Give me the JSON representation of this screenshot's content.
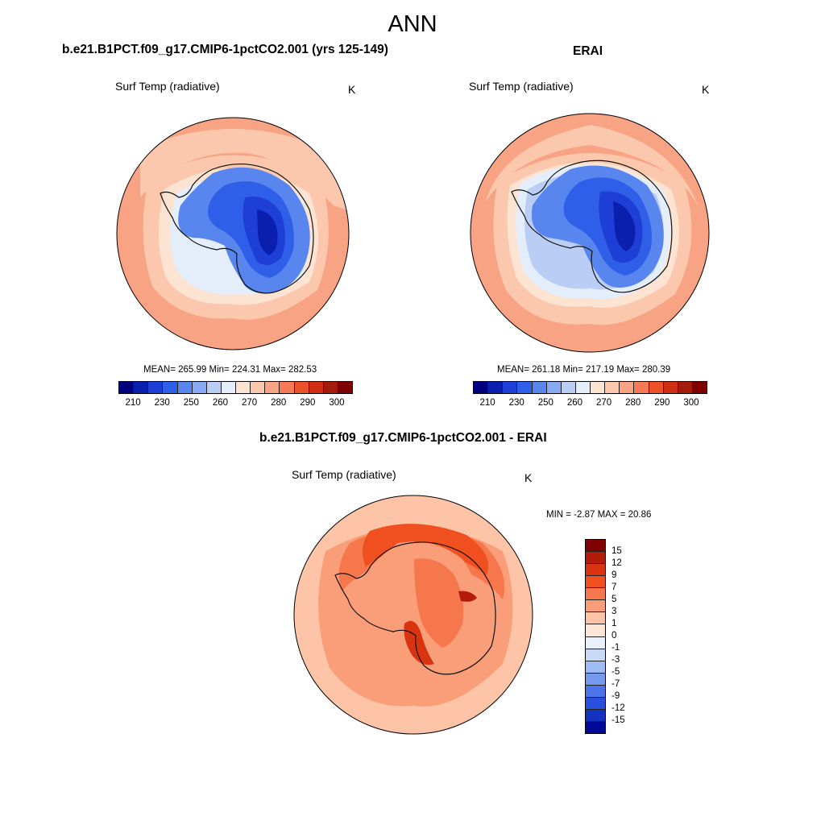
{
  "title": "ANN",
  "left_panel": {
    "title": "b.e21.B1PCT.f09_g17.CMIP6-1pctCO2.001 (yrs 125-149)",
    "variable": "Surf Temp (radiative)",
    "units": "K",
    "stats": "MEAN= 265.99  Min= 224.31  Max= 282.53"
  },
  "right_panel": {
    "title": "ERAI",
    "variable": "Surf Temp (radiative)",
    "units": "K",
    "stats": "MEAN= 261.18  Min= 217.19  Max= 280.39"
  },
  "diff_panel": {
    "title": "b.e21.B1PCT.f09_g17.CMIP6-1pctCO2.001 - ERAI",
    "variable": "Surf Temp (radiative)",
    "units": "K",
    "stats": "MIN =  -2.87 MAX =  20.86"
  },
  "colors": {
    "abs_scale": [
      "#00007f",
      "#0a1fae",
      "#1e3fd6",
      "#2f5fe8",
      "#5886ee",
      "#89aaf2",
      "#b9cdf5",
      "#e4eefa",
      "#fde3d1",
      "#fbc8ae",
      "#f8a383",
      "#f57a55",
      "#ed5127",
      "#cf2e12",
      "#a41a0b",
      "#7f0000"
    ],
    "diff_scale": [
      "#7f0000",
      "#b31c0a",
      "#d93410",
      "#f0501f",
      "#f7774d",
      "#fa9e7a",
      "#fdc4a8",
      "#fee5d6",
      "#e7f0fb",
      "#c8dbf6",
      "#9fbdf2",
      "#7499ed",
      "#4a74e8",
      "#2850dc",
      "#1232bf",
      "#000a96"
    ],
    "land_line": "#111111"
  },
  "chart_data": [
    {
      "type": "heatmap",
      "name": "model-surf-temp",
      "colorbar_labels": [
        "210",
        "230",
        "250",
        "260",
        "270",
        "280",
        "290",
        "300"
      ],
      "colorbar_levels": [
        210,
        220,
        230,
        240,
        250,
        255,
        260,
        265,
        270,
        275,
        280,
        285,
        290,
        295,
        300
      ],
      "stats": {
        "mean": 265.99,
        "min": 224.31,
        "max": 282.53
      }
    },
    {
      "type": "heatmap",
      "name": "erai-surf-temp",
      "colorbar_labels": [
        "210",
        "230",
        "250",
        "260",
        "270",
        "280",
        "290",
        "300"
      ],
      "colorbar_levels": [
        210,
        220,
        230,
        240,
        250,
        255,
        260,
        265,
        270,
        275,
        280,
        285,
        290,
        295,
        300
      ],
      "stats": {
        "mean": 261.18,
        "min": 217.19,
        "max": 280.39
      }
    },
    {
      "type": "heatmap",
      "name": "difference-surf-temp",
      "colorbar_labels": [
        "15",
        "12",
        "9",
        "7",
        "5",
        "3",
        "1",
        "0",
        "-1",
        "-3",
        "-5",
        "-7",
        "-9",
        "-12",
        "-15"
      ],
      "stats": {
        "min": -2.87,
        "max": 20.86
      }
    }
  ]
}
